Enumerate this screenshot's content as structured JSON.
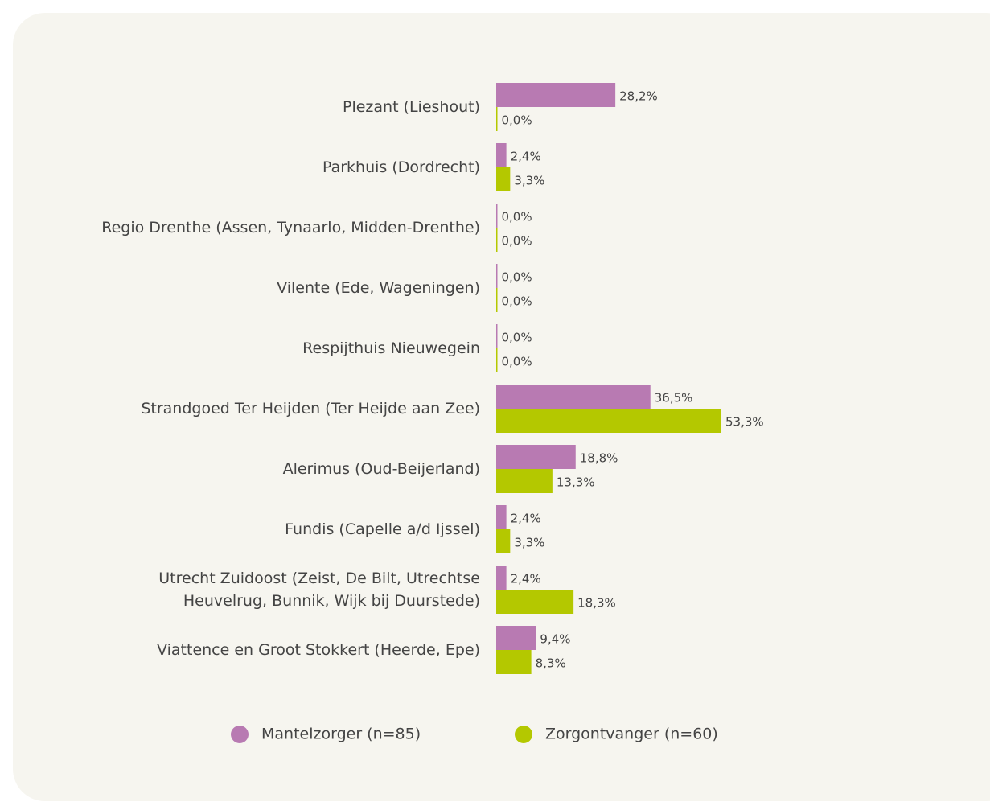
{
  "chart_data": {
    "type": "bar",
    "orientation": "horizontal",
    "categories": [
      "Plezant (Lieshout)",
      "Parkhuis (Dordrecht)",
      "Regio Drenthe (Assen, Tynaarlo, Midden-Drenthe)",
      "Vilente (Ede, Wageningen)",
      "Respijthuis Nieuwegein",
      "Strandgoed Ter Heijden (Ter Heijde aan Zee)",
      "Alerimus (Oud-Beijerland)",
      "Fundis (Capelle a/d Ijssel)",
      "Utrecht Zuidoost (Zeist, De Bilt, Utrechtse \nHeuvelrug, Bunnik, Wijk bij Duurstede)",
      "Viattence en Groot Stokkert (Heerde, Epe)"
    ],
    "series": [
      {
        "name": "Mantelzorger (n=85)",
        "color": "#b87ab2",
        "values": [
          28.2,
          2.4,
          0,
          0,
          0,
          36.5,
          18.8,
          2.4,
          2.4,
          9.4
        ],
        "value_labels": [
          "28,2%",
          "2,4%",
          "0,0%",
          "0,0%",
          "0,0%",
          "36,5%",
          "18,8%",
          "2,4%",
          "2,4%",
          "9,4%"
        ]
      },
      {
        "name": "Zorgontvanger (n=60)",
        "color": "#b4c800",
        "values": [
          0,
          3.3,
          0,
          0,
          0,
          53.3,
          13.3,
          3.3,
          18.3,
          8.3
        ],
        "value_labels": [
          "0,0%",
          "3,3%",
          "0,0%",
          "0,0%",
          "0,0%",
          "53,3%",
          "13,3%",
          "3,3%",
          "18,3%",
          "8,3%"
        ]
      }
    ]
  }
}
